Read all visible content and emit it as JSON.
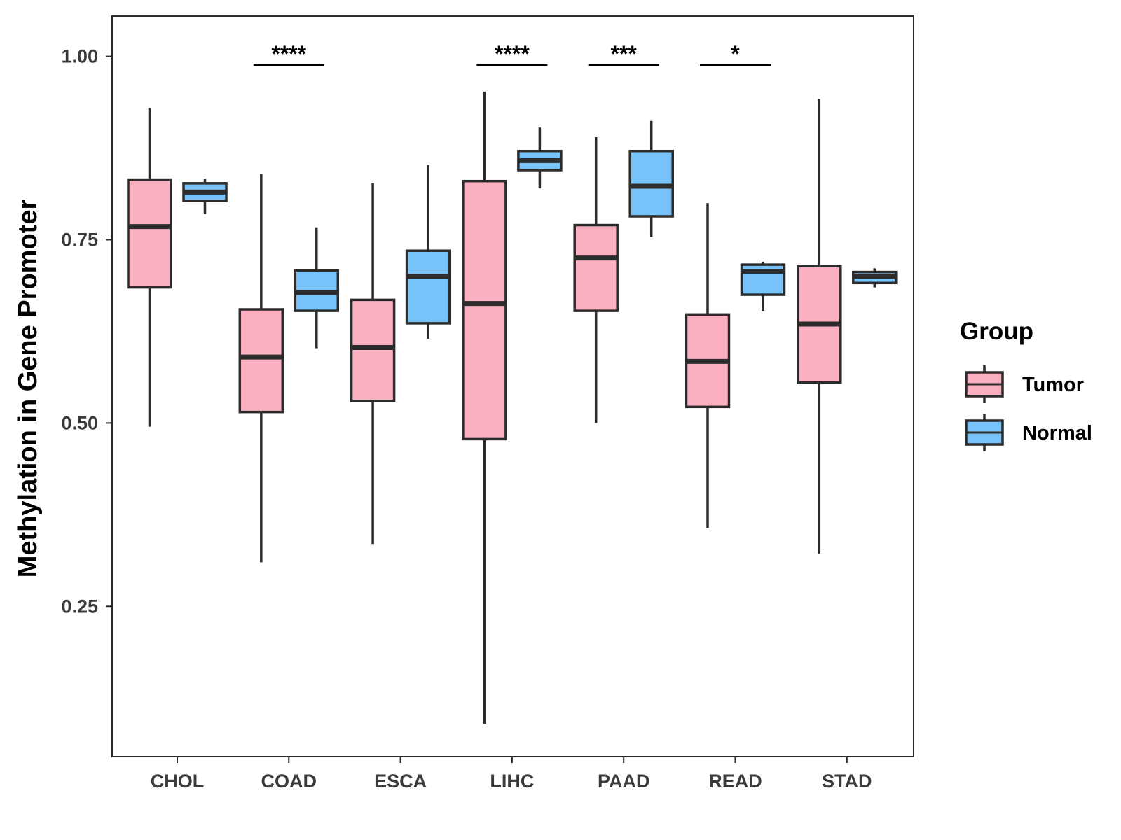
{
  "chart_data": {
    "type": "boxplot",
    "title": "",
    "xlabel": "",
    "ylabel": "Methylation in Gene Promoter",
    "ylim": [
      0.045,
      1.055
    ],
    "yticks": [
      0.25,
      0.5,
      0.75,
      1.0
    ],
    "ytick_labels": [
      "0.25",
      "0.50",
      "0.75",
      "1.00"
    ],
    "grid": false,
    "categories": [
      "CHOL",
      "COAD",
      "ESCA",
      "LIHC",
      "PAAD",
      "READ",
      "STAD"
    ],
    "legend": {
      "title": "Group",
      "position": "right",
      "entries": [
        {
          "name": "Tumor",
          "color": "#FBB0C2"
        },
        {
          "name": "Normal",
          "color": "#77C2F8"
        }
      ]
    },
    "series": [
      {
        "name": "Tumor",
        "color": "#FBB0C2",
        "boxes": [
          {
            "category": "CHOL",
            "min": 0.495,
            "q1": 0.685,
            "median": 0.768,
            "q3": 0.832,
            "max": 0.93
          },
          {
            "category": "COAD",
            "min": 0.31,
            "q1": 0.515,
            "median": 0.59,
            "q3": 0.655,
            "max": 0.84
          },
          {
            "category": "ESCA",
            "min": 0.335,
            "q1": 0.53,
            "median": 0.603,
            "q3": 0.668,
            "max": 0.827
          },
          {
            "category": "LIHC",
            "min": 0.09,
            "q1": 0.478,
            "median": 0.663,
            "q3": 0.83,
            "max": 0.952
          },
          {
            "category": "PAAD",
            "min": 0.5,
            "q1": 0.653,
            "median": 0.725,
            "q3": 0.77,
            "max": 0.89
          },
          {
            "category": "READ",
            "min": 0.357,
            "q1": 0.522,
            "median": 0.584,
            "q3": 0.648,
            "max": 0.8
          },
          {
            "category": "STAD",
            "min": 0.322,
            "q1": 0.555,
            "median": 0.635,
            "q3": 0.714,
            "max": 0.942
          }
        ]
      },
      {
        "name": "Normal",
        "color": "#77C2F8",
        "boxes": [
          {
            "category": "CHOL",
            "min": 0.785,
            "q1": 0.803,
            "median": 0.815,
            "q3": 0.827,
            "max": 0.833
          },
          {
            "category": "COAD",
            "min": 0.602,
            "q1": 0.653,
            "median": 0.678,
            "q3": 0.708,
            "max": 0.767
          },
          {
            "category": "ESCA",
            "min": 0.615,
            "q1": 0.636,
            "median": 0.7,
            "q3": 0.735,
            "max": 0.852
          },
          {
            "category": "LIHC",
            "min": 0.82,
            "q1": 0.845,
            "median": 0.858,
            "q3": 0.871,
            "max": 0.903
          },
          {
            "category": "PAAD",
            "min": 0.754,
            "q1": 0.782,
            "median": 0.823,
            "q3": 0.871,
            "max": 0.912
          },
          {
            "category": "READ",
            "min": 0.653,
            "q1": 0.675,
            "median": 0.707,
            "q3": 0.716,
            "max": 0.72
          },
          {
            "category": "STAD",
            "min": 0.685,
            "q1": 0.691,
            "median": 0.7,
            "q3": 0.706,
            "max": 0.711
          }
        ]
      }
    ],
    "significance": [
      {
        "category": "COAD",
        "label": "****",
        "y": 0.988
      },
      {
        "category": "LIHC",
        "label": "****",
        "y": 0.988
      },
      {
        "category": "PAAD",
        "label": "***",
        "y": 0.988
      },
      {
        "category": "READ",
        "label": "*",
        "y": 0.988
      }
    ]
  }
}
